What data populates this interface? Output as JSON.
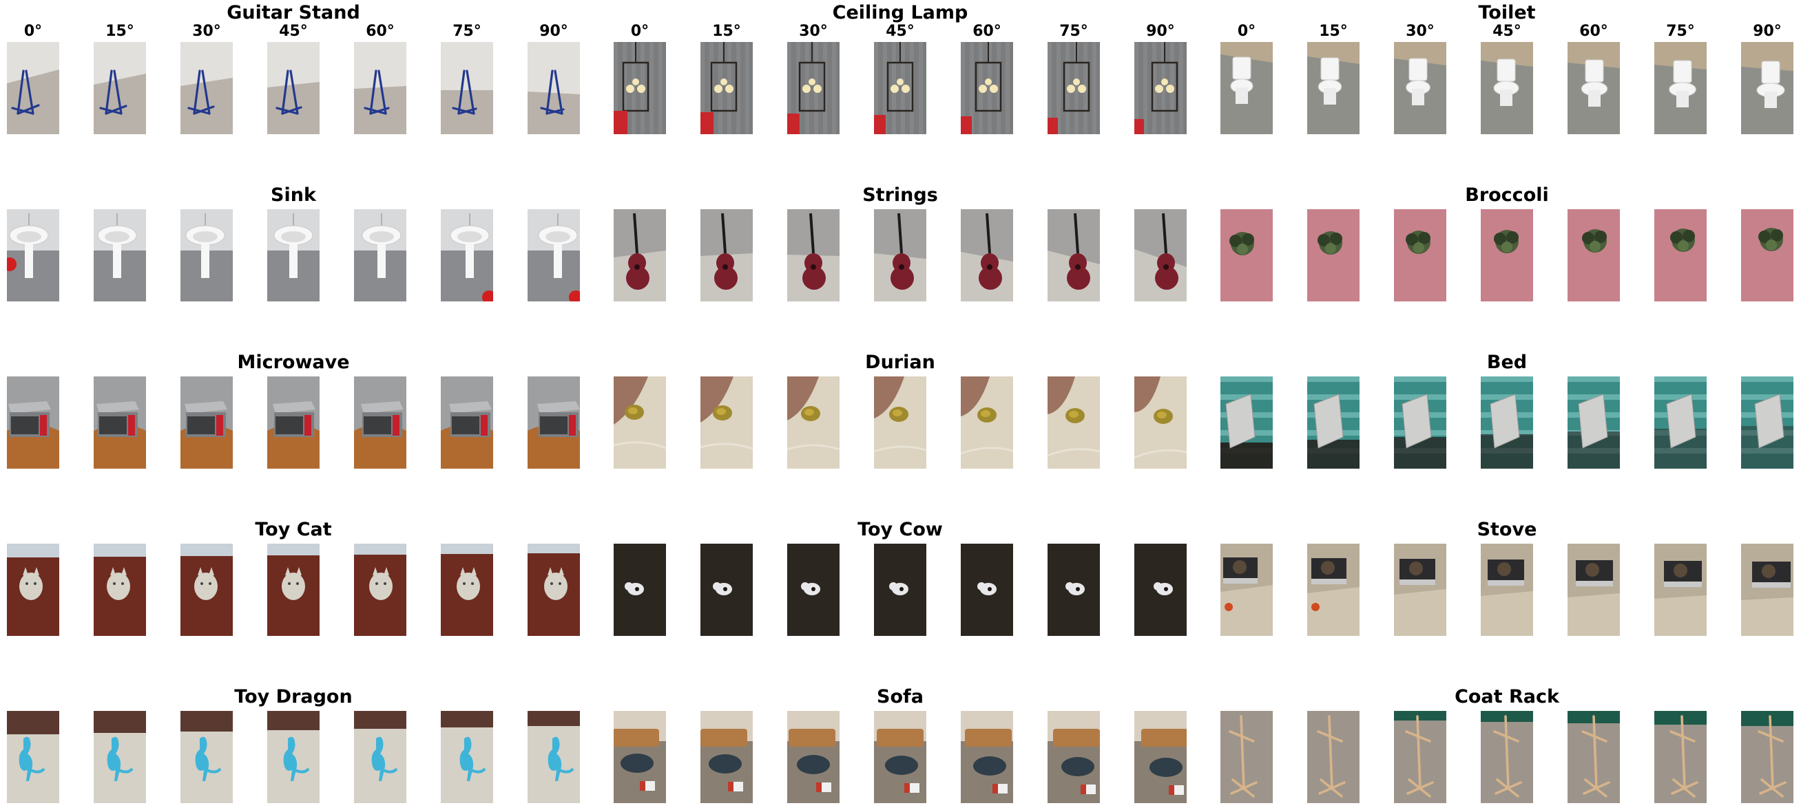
{
  "angles": [
    "0°",
    "15°",
    "30°",
    "45°",
    "60°",
    "75°",
    "90°"
  ],
  "objects": [
    {
      "name": "Guitar Stand",
      "scene": "stand",
      "colors": {
        "bg": "#e2e0dc",
        "floor": "#b9b2aa",
        "obj": "#23398f"
      }
    },
    {
      "name": "Ceiling Lamp",
      "scene": "lamp",
      "colors": {
        "bg": "#7a7c7e",
        "floor": "#6e6e70",
        "obj": "#2a2520",
        "accent": "#f4e7b8"
      }
    },
    {
      "name": "Toilet",
      "scene": "toilet",
      "colors": {
        "bg": "#b7a88f",
        "floor": "#8f8f8a",
        "obj": "#f5f5f5"
      }
    },
    {
      "name": "Sink",
      "scene": "sink",
      "colors": {
        "bg": "#d8d9db",
        "floor": "#8a8b8e",
        "obj": "#f7f7f7",
        "accent": "#d21e1e"
      }
    },
    {
      "name": "Strings",
      "scene": "guitar",
      "colors": {
        "bg": "#a3a2a0",
        "floor": "#c9c6c0",
        "obj": "#7c1f2c",
        "accent": "#1b1b1b"
      }
    },
    {
      "name": "Broccoli",
      "scene": "broccoli",
      "colors": {
        "bg": "#c7818b",
        "floor": "#c7818b",
        "obj": "#4a5d3a",
        "accent": "#2f3f25"
      }
    },
    {
      "name": "Microwave",
      "scene": "microwave",
      "colors": {
        "bg": "#9e9fa0",
        "floor": "#b06a30",
        "obj": "#7c7f82",
        "accent": "#c51f2b"
      }
    },
    {
      "name": "Durian",
      "scene": "durian",
      "colors": {
        "bg": "#9b7360",
        "floor": "#dcd3c0",
        "obj": "#a08a2e",
        "accent": "#e8e2d4"
      }
    },
    {
      "name": "Bed",
      "scene": "bed",
      "colors": {
        "bg": "#3a8c86",
        "floor": "#241c18",
        "obj": "#cfcfcd",
        "accent": "#8fd3cf"
      }
    },
    {
      "name": "Toy Cat",
      "scene": "cat",
      "colors": {
        "bg": "#6e2b1f",
        "floor": "#6e2b1f",
        "obj": "#d6d2c8",
        "accent": "#c8d0d8"
      }
    },
    {
      "name": "Toy Cow",
      "scene": "cow",
      "colors": {
        "bg": "#2b2620",
        "floor": "#2b2620",
        "obj": "#e8e8ea",
        "accent": "#1a1612"
      }
    },
    {
      "name": "Stove",
      "scene": "stove",
      "colors": {
        "bg": "#cfc4b0",
        "floor": "#b8ad99",
        "obj": "#2b2b2e",
        "accent": "#d04a1e"
      }
    },
    {
      "name": "Toy Dragon",
      "scene": "dragon",
      "colors": {
        "bg": "#dcd6cc",
        "floor": "#d5d1c7",
        "obj": "#3fb4d9",
        "accent": "#5a3a30"
      }
    },
    {
      "name": "Sofa",
      "scene": "sofa",
      "colors": {
        "bg": "#b27a45",
        "floor": "#8a7f73",
        "obj": "#2f3e48",
        "accent": "#c0392b"
      }
    },
    {
      "name": "Coat Rack",
      "scene": "rack",
      "colors": {
        "bg": "#9a968f",
        "floor": "#9d958c",
        "obj": "#d8b48a",
        "accent": "#1e5a4a"
      }
    }
  ]
}
